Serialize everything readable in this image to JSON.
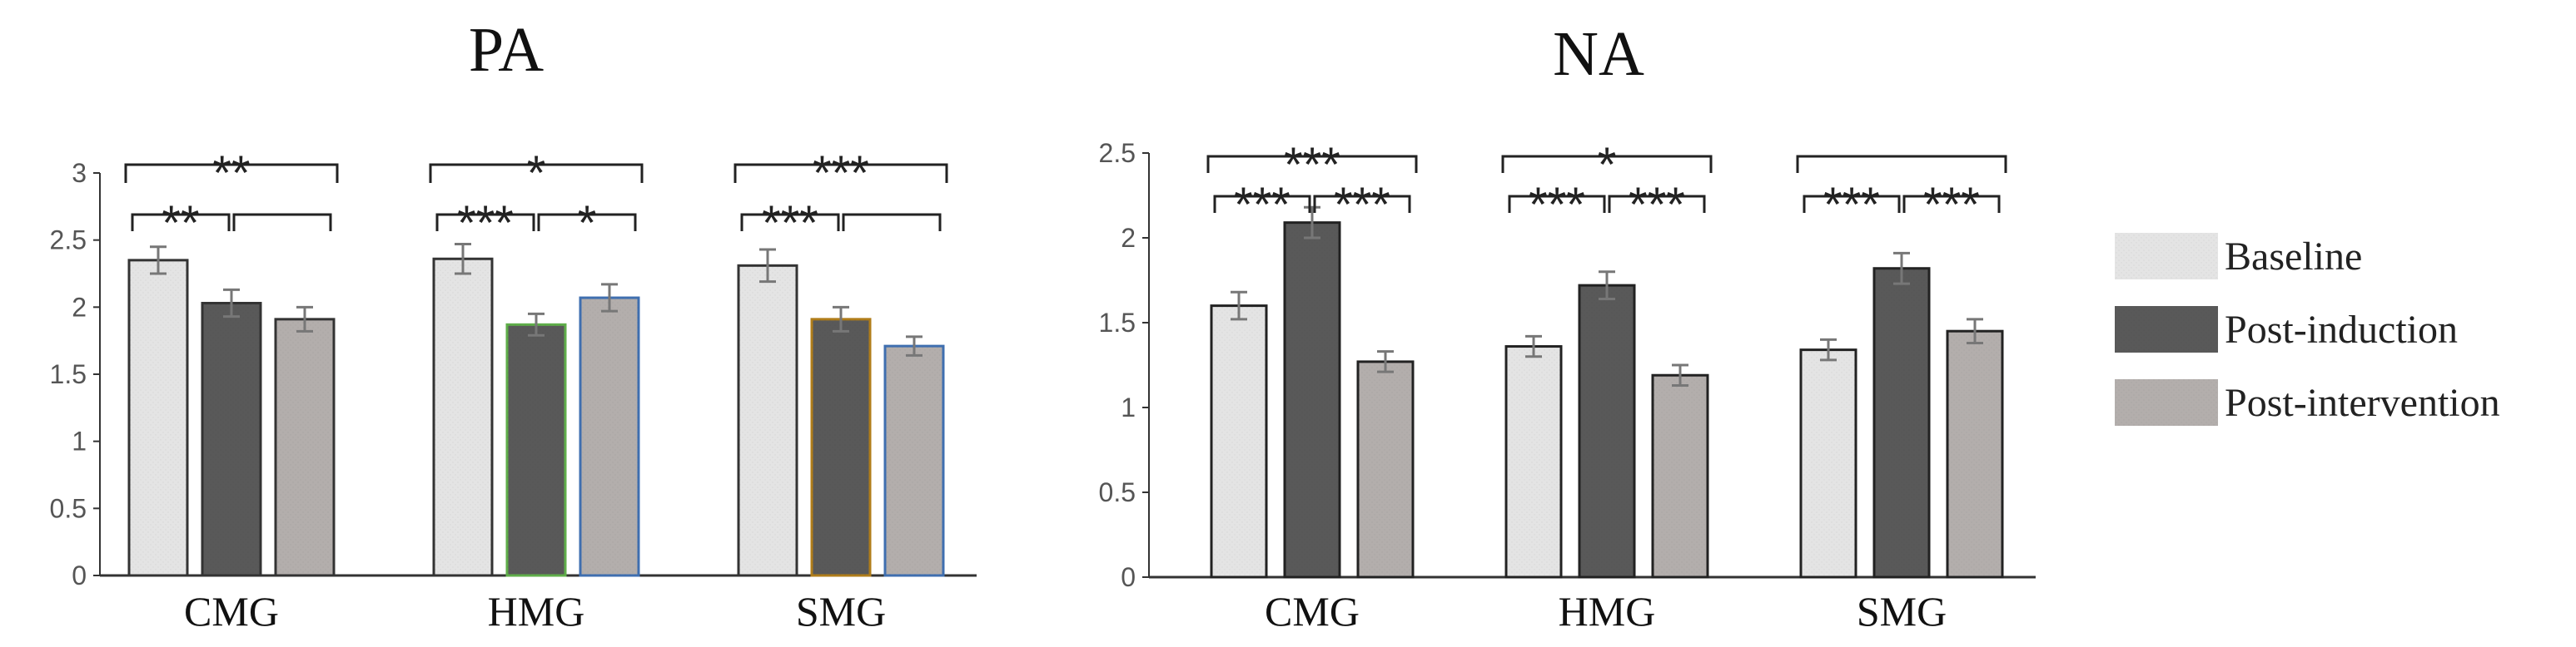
{
  "colors": {
    "baseline": "#e4e4e4",
    "post_induction": "#595959",
    "post_intervention": "#b3aeac",
    "bar_stroke": "#333333",
    "axis": "#333333",
    "error_bar": "#777777"
  },
  "legend": {
    "items": [
      {
        "label": "Baseline",
        "color": "#e4e4e4"
      },
      {
        "label": "Post-induction",
        "color": "#595959"
      },
      {
        "label": "Post-intervention",
        "color": "#b3aeac"
      }
    ]
  },
  "chart_data": [
    {
      "type": "bar",
      "title": "PA",
      "categories": [
        "CMG",
        "HMG",
        "SMG"
      ],
      "ylim": [
        0,
        3
      ],
      "yticks": [
        "0",
        "0.5",
        "1",
        "1.5",
        "2",
        "2.5",
        "3"
      ],
      "grid": false,
      "legend_position": "right",
      "series": [
        {
          "name": "Baseline",
          "values": [
            2.35,
            2.36,
            2.31
          ],
          "errors": [
            0.1,
            0.11,
            0.12
          ]
        },
        {
          "name": "Post-induction",
          "values": [
            2.03,
            1.87,
            1.91
          ],
          "errors": [
            0.1,
            0.08,
            0.09
          ]
        },
        {
          "name": "Post-intervention",
          "values": [
            1.91,
            2.07,
            1.71
          ],
          "errors": [
            0.09,
            0.1,
            0.07
          ]
        }
      ],
      "series_outlines": [
        [
          "#333333",
          "#333333",
          "#333333"
        ],
        [
          "#333333",
          "#5fae4a",
          "#b07d1a"
        ],
        [
          "#333333",
          "#3f6fb0",
          "#3f6fb0"
        ]
      ],
      "significance": [
        {
          "category": 0,
          "from": 0,
          "to": 2,
          "level": "outer",
          "stars": "**"
        },
        {
          "category": 0,
          "from": 0,
          "to": 1,
          "level": "inner",
          "stars": "**"
        },
        {
          "category": 0,
          "from": 1,
          "to": 2,
          "level": "inner",
          "stars": ""
        },
        {
          "category": 1,
          "from": 0,
          "to": 2,
          "level": "outer",
          "stars": "*"
        },
        {
          "category": 1,
          "from": 0,
          "to": 1,
          "level": "inner",
          "stars": "***"
        },
        {
          "category": 1,
          "from": 1,
          "to": 2,
          "level": "inner",
          "stars": "*"
        },
        {
          "category": 2,
          "from": 0,
          "to": 2,
          "level": "outer",
          "stars": "***"
        },
        {
          "category": 2,
          "from": 0,
          "to": 1,
          "level": "inner",
          "stars": "***"
        },
        {
          "category": 2,
          "from": 1,
          "to": 2,
          "level": "inner",
          "stars": ""
        }
      ]
    },
    {
      "type": "bar",
      "title": "NA",
      "categories": [
        "CMG",
        "HMG",
        "SMG"
      ],
      "ylim": [
        0,
        2.5
      ],
      "yticks": [
        "0",
        "0.5",
        "1",
        "1.5",
        "2",
        "2.5"
      ],
      "grid": false,
      "legend_position": "right",
      "series": [
        {
          "name": "Baseline",
          "values": [
            1.6,
            1.36,
            1.34
          ],
          "errors": [
            0.08,
            0.06,
            0.06
          ]
        },
        {
          "name": "Post-induction",
          "values": [
            2.09,
            1.72,
            1.82
          ],
          "errors": [
            0.09,
            0.08,
            0.09
          ]
        },
        {
          "name": "Post-intervention",
          "values": [
            1.27,
            1.19,
            1.45
          ],
          "errors": [
            0.06,
            0.06,
            0.07
          ]
        }
      ],
      "series_outlines": [
        [
          "#222222",
          "#222222",
          "#222222"
        ],
        [
          "#222222",
          "#222222",
          "#222222"
        ],
        [
          "#222222",
          "#222222",
          "#222222"
        ]
      ],
      "significance": [
        {
          "category": 0,
          "from": 0,
          "to": 2,
          "level": "outer",
          "stars": "***"
        },
        {
          "category": 0,
          "from": 0,
          "to": 1,
          "level": "inner",
          "stars": "***"
        },
        {
          "category": 0,
          "from": 1,
          "to": 2,
          "level": "inner",
          "stars": "***"
        },
        {
          "category": 1,
          "from": 0,
          "to": 2,
          "level": "outer",
          "stars": "*"
        },
        {
          "category": 1,
          "from": 0,
          "to": 1,
          "level": "inner",
          "stars": "***"
        },
        {
          "category": 1,
          "from": 1,
          "to": 2,
          "level": "inner",
          "stars": "***"
        },
        {
          "category": 2,
          "from": 0,
          "to": 2,
          "level": "outer",
          "stars": ""
        },
        {
          "category": 2,
          "from": 0,
          "to": 1,
          "level": "inner",
          "stars": "***"
        },
        {
          "category": 2,
          "from": 1,
          "to": 2,
          "level": "inner",
          "stars": "***"
        }
      ]
    }
  ]
}
